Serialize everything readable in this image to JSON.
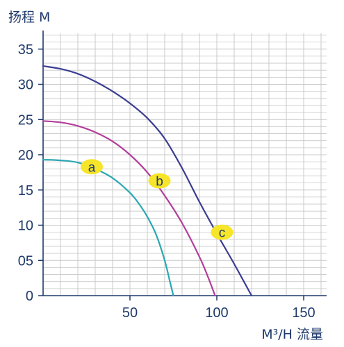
{
  "chart_data": {
    "type": "line",
    "title": "",
    "ylabel": "扬程 M",
    "xlabel": "M³/H 流量",
    "xlim": [
      0,
      160
    ],
    "ylim": [
      0,
      37
    ],
    "x_ticks": [
      50,
      100,
      150
    ],
    "x_tick_labels": [
      "50",
      "100",
      "150"
    ],
    "y_ticks": [
      0,
      5,
      10,
      15,
      20,
      25,
      30,
      35
    ],
    "y_tick_labels": [
      "0",
      "05",
      "10",
      "15",
      "20",
      "25",
      "30",
      "35"
    ],
    "grid": true,
    "legend": "none",
    "series": [
      {
        "name": "a",
        "color": "#2aa7b3",
        "x": [
          0,
          10,
          20,
          30,
          40,
          50,
          55,
          60,
          65,
          70,
          73,
          75
        ],
        "y": [
          19.3,
          19.2,
          18.9,
          18.0,
          16.7,
          14.6,
          13.1,
          11.2,
          8.7,
          5.0,
          2.0,
          0
        ],
        "label_at": [
          28,
          18.3
        ]
      },
      {
        "name": "b",
        "color": "#b23d9a",
        "x": [
          0,
          10,
          20,
          30,
          40,
          50,
          60,
          70,
          80,
          90,
          95,
          99
        ],
        "y": [
          24.8,
          24.6,
          24.1,
          23.2,
          21.9,
          20.0,
          17.5,
          14.2,
          10.3,
          5.5,
          2.6,
          0
        ],
        "label_at": [
          67,
          16.3
        ]
      },
      {
        "name": "c",
        "color": "#3b3d93",
        "x": [
          0,
          10,
          20,
          30,
          40,
          50,
          60,
          70,
          80,
          90,
          100,
          110,
          120
        ],
        "y": [
          32.6,
          32.2,
          31.5,
          30.4,
          29.0,
          27.3,
          25.2,
          22.3,
          18.1,
          13.3,
          8.8,
          4.5,
          0
        ],
        "label_at": [
          103,
          9.0
        ]
      }
    ],
    "colors": {
      "axis": "#1f3a6b",
      "grid": "#c8c8c8",
      "label_highlight": "#f6e528"
    }
  }
}
